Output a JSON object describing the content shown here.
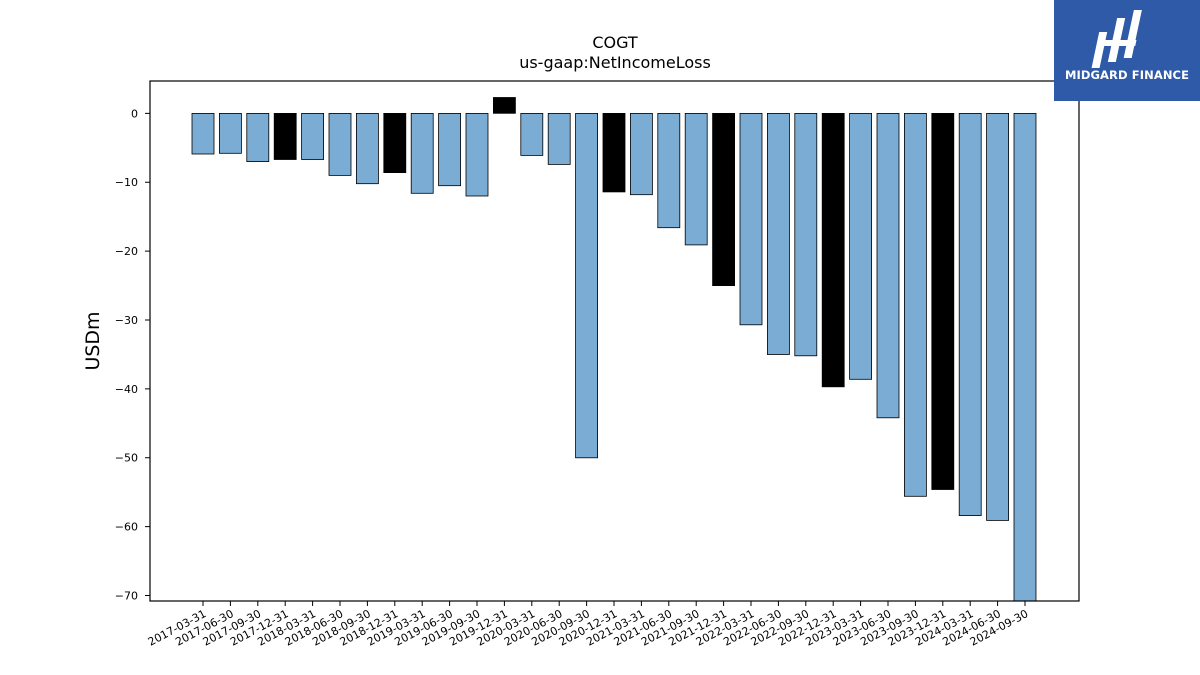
{
  "brand": {
    "name": "MIDGARD FINANCE",
    "logo_icon": "midgard-logo-icon",
    "background": "#2f5aa8"
  },
  "chart_data": {
    "type": "bar",
    "title": "COGT",
    "subtitle": "us-gaap:NetIncomeLoss",
    "xlabel": "",
    "ylabel": "USDm",
    "ylim": [
      -70.8,
      4.7
    ],
    "yticks": [
      0,
      -10,
      -20,
      -30,
      -40,
      -50,
      -60,
      -70
    ],
    "grid": false,
    "colors": {
      "quarterly": "#7bacd4",
      "annual": "#000000"
    },
    "categories": [
      "2017-03-31",
      "2017-06-30",
      "2017-09-30",
      "2017-12-31",
      "2018-03-31",
      "2018-06-30",
      "2018-09-30",
      "2018-12-31",
      "2019-03-31",
      "2019-06-30",
      "2019-09-30",
      "2019-12-31",
      "2020-03-31",
      "2020-06-30",
      "2020-09-30",
      "2020-12-31",
      "2021-03-31",
      "2021-06-30",
      "2021-09-30",
      "2021-12-31",
      "2022-03-31",
      "2022-06-30",
      "2022-09-30",
      "2022-12-31",
      "2023-03-31",
      "2023-06-30",
      "2023-09-30",
      "2023-12-31",
      "2024-03-31",
      "2024-06-30",
      "2024-09-30"
    ],
    "values": [
      -5.9,
      -5.8,
      -7.0,
      -6.7,
      -6.7,
      -9.0,
      -10.2,
      -8.6,
      -11.6,
      -10.5,
      -12.0,
      2.3,
      -6.1,
      -7.4,
      -50.0,
      -11.4,
      -11.8,
      -16.6,
      -19.1,
      -25.0,
      -30.7,
      -35.0,
      -35.2,
      -39.7,
      -38.6,
      -44.2,
      -55.6,
      -54.6,
      -58.4,
      -59.1,
      -70.8
    ],
    "bar_kind": [
      "quarterly",
      "quarterly",
      "quarterly",
      "annual",
      "quarterly",
      "quarterly",
      "quarterly",
      "annual",
      "quarterly",
      "quarterly",
      "quarterly",
      "annual",
      "quarterly",
      "quarterly",
      "quarterly",
      "annual",
      "quarterly",
      "quarterly",
      "quarterly",
      "annual",
      "quarterly",
      "quarterly",
      "quarterly",
      "annual",
      "quarterly",
      "quarterly",
      "quarterly",
      "annual",
      "quarterly",
      "quarterly",
      "quarterly"
    ]
  }
}
